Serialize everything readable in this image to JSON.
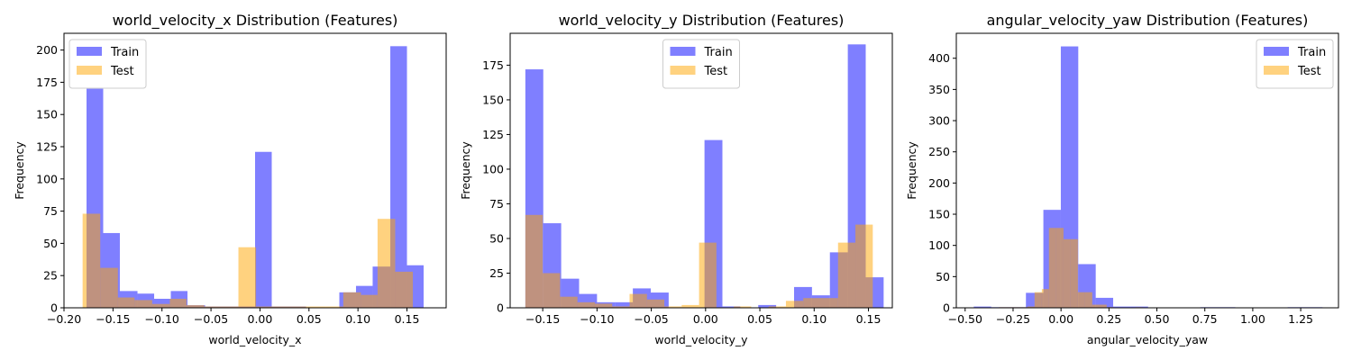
{
  "colors": {
    "train": "#0000ff",
    "test": "#ffa500",
    "bar_alpha": 0.5
  },
  "chart_data": [
    {
      "type": "bar",
      "title": "world_velocity_x Distribution (Features)",
      "xlabel": "world_velocity_x",
      "ylabel": "Frequency",
      "xlim": [
        -0.2,
        0.19
      ],
      "ylim": [
        0,
        213
      ],
      "xticks": [
        -0.2,
        -0.15,
        -0.1,
        -0.05,
        0.0,
        0.05,
        0.1,
        0.15
      ],
      "xtick_labels": [
        "−0.20",
        "−0.15",
        "−0.10",
        "−0.05",
        "0.00",
        "0.05",
        "0.10",
        "0.15"
      ],
      "yticks": [
        0,
        25,
        50,
        75,
        100,
        125,
        150,
        175,
        200
      ],
      "legend_position": "upper left",
      "legend": [
        "Train",
        "Test"
      ],
      "series": [
        {
          "name": "Train",
          "bin_edges": [
            -0.177,
            -0.16,
            -0.143,
            -0.125,
            -0.108,
            -0.091,
            -0.074,
            -0.056,
            -0.039,
            -0.022,
            -0.005,
            0.012,
            0.029,
            0.047,
            0.064,
            0.081,
            0.098,
            0.115,
            0.133,
            0.15,
            0.167
          ],
          "counts": [
            170,
            58,
            13,
            11,
            7,
            13,
            2,
            1,
            1,
            1,
            121,
            1,
            1,
            0,
            0,
            12,
            17,
            32,
            203,
            33
          ]
        },
        {
          "name": "Test",
          "bin_edges": [
            -0.181,
            -0.163,
            -0.145,
            -0.128,
            -0.11,
            -0.092,
            -0.075,
            -0.057,
            -0.039,
            -0.022,
            -0.004,
            0.014,
            0.032,
            0.049,
            0.067,
            0.085,
            0.103,
            0.12,
            0.138,
            0.156,
            0.173
          ],
          "counts": [
            73,
            31,
            8,
            6,
            3,
            7,
            2,
            1,
            1,
            47,
            1,
            1,
            1,
            1,
            1,
            12,
            10,
            69,
            28,
            0
          ]
        }
      ]
    },
    {
      "type": "bar",
      "title": "world_velocity_y Distribution (Features)",
      "xlabel": "world_velocity_y",
      "ylabel": "Frequency",
      "xlim": [
        -0.18,
        0.172
      ],
      "ylim": [
        0,
        198
      ],
      "xticks": [
        -0.15,
        -0.1,
        -0.05,
        0.0,
        0.05,
        0.1,
        0.15
      ],
      "xtick_labels": [
        "−0.15",
        "−0.10",
        "−0.05",
        "0.00",
        "0.05",
        "0.10",
        "0.15"
      ],
      "yticks": [
        0,
        25,
        50,
        75,
        100,
        125,
        150,
        175
      ],
      "legend_position": "upper center",
      "legend": [
        "Train",
        "Test"
      ],
      "series": [
        {
          "name": "Train",
          "bin_edges": [
            -0.166,
            -0.1495,
            -0.133,
            -0.1165,
            -0.1,
            -0.0835,
            -0.067,
            -0.0505,
            -0.034,
            -0.0175,
            -0.001,
            0.0155,
            0.032,
            0.0485,
            0.065,
            0.0815,
            0.098,
            0.1145,
            0.131,
            0.1475,
            0.164
          ],
          "counts": [
            172,
            61,
            21,
            10,
            4,
            4,
            14,
            11,
            0,
            0,
            121,
            1,
            0,
            2,
            0,
            15,
            9,
            40,
            190,
            22
          ]
        },
        {
          "name": "Test",
          "bin_edges": [
            -0.166,
            -0.15,
            -0.134,
            -0.118,
            -0.102,
            -0.086,
            -0.07,
            -0.054,
            -0.038,
            -0.022,
            -0.006,
            0.01,
            0.026,
            0.042,
            0.058,
            0.074,
            0.09,
            0.106,
            0.122,
            0.138,
            0.154
          ],
          "counts": [
            67,
            25,
            8,
            4,
            3,
            1,
            10,
            6,
            1,
            2,
            47,
            0,
            1,
            0,
            1,
            5,
            7,
            7,
            47,
            60
          ]
        }
      ]
    },
    {
      "type": "bar",
      "title": "angular_velocity_yaw Distribution (Features)",
      "xlabel": "angular_velocity_yaw",
      "ylabel": "Frequency",
      "xlim": [
        -0.546,
        1.447
      ],
      "ylim": [
        0,
        440
      ],
      "xticks": [
        -0.5,
        -0.25,
        0.0,
        0.25,
        0.5,
        0.75,
        1.0,
        1.25
      ],
      "xtick_labels": [
        "−0.50",
        "−0.25",
        "0.00",
        "0.25",
        "0.50",
        "0.75",
        "1.00",
        "1.25"
      ],
      "yticks": [
        0,
        50,
        100,
        150,
        200,
        250,
        300,
        350,
        400
      ],
      "legend_position": "upper right",
      "legend": [
        "Train",
        "Test"
      ],
      "series": [
        {
          "name": "Train",
          "bin_edges": [
            -0.455,
            -0.364,
            -0.273,
            -0.183,
            -0.092,
            -0.001,
            0.09,
            0.181,
            0.272,
            0.363,
            0.454,
            0.545,
            0.636,
            0.727,
            0.818,
            0.909,
            1.0,
            1.091,
            1.182,
            1.273,
            1.364
          ],
          "counts": [
            2,
            1,
            1,
            24,
            157,
            419,
            70,
            16,
            2,
            2,
            0,
            0,
            0,
            1,
            1,
            0,
            0,
            0,
            1,
            1
          ]
        },
        {
          "name": "Test",
          "bin_edges": [
            -0.325,
            -0.288,
            -0.25,
            -0.213,
            -0.175,
            -0.138,
            -0.1,
            -0.063,
            -0.025,
            0.013,
            0.05,
            0.088,
            0.125,
            0.163,
            0.2,
            0.238,
            0.275,
            0.313,
            0.35,
            0.388,
            0.425
          ],
          "counts": [
            1,
            1,
            1,
            1,
            2,
            25,
            30,
            128,
            128,
            110,
            110,
            25,
            25,
            5,
            5,
            1,
            0,
            0,
            0,
            1
          ]
        }
      ]
    }
  ]
}
